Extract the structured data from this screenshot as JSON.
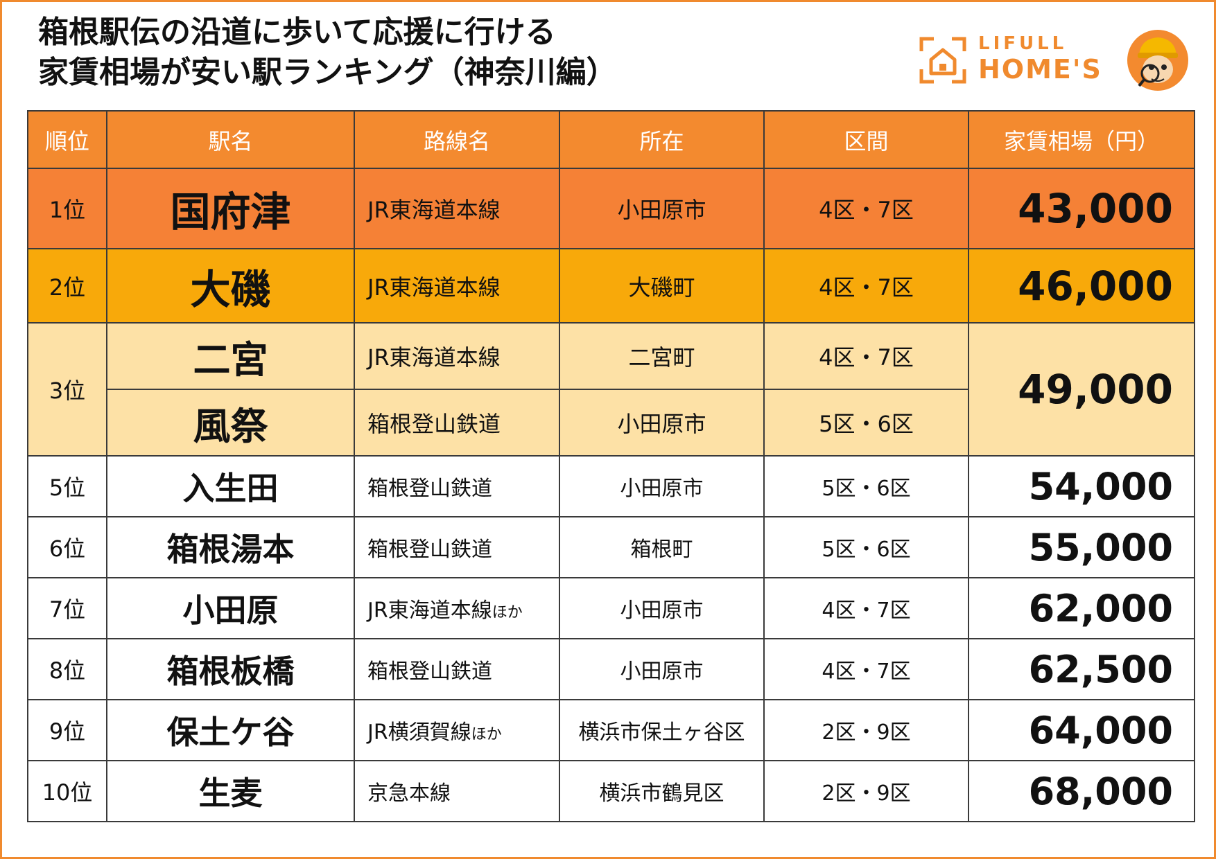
{
  "title": {
    "line1": "箱根駅伝の沿道に歩いて応援に行ける",
    "line2": "家賃相場が安い駅ランキング（神奈川編）"
  },
  "logo": {
    "brand_top": "LIFULL",
    "brand_bottom": "HOME'S",
    "house_icon": "house-icon",
    "mascot_icon": "mascot-detective-icon"
  },
  "colors": {
    "accent": "#f08a2e",
    "header": "#f38a2f",
    "rank1": "#f58136",
    "rank2": "#f8a90a",
    "rank3": "#fde1a6"
  },
  "table": {
    "headers": [
      "順位",
      "駅名",
      "路線名",
      "所在",
      "区間",
      "家賃相場（円）"
    ],
    "rows": [
      {
        "rank": "1位",
        "station": "国府津",
        "line": "JR東海道本線",
        "line_suffix": "",
        "location": "小田原市",
        "section": "4区・7区",
        "rent": "43,000"
      },
      {
        "rank": "2位",
        "station": "大磯",
        "line": "JR東海道本線",
        "line_suffix": "",
        "location": "大磯町",
        "section": "4区・7区",
        "rent": "46,000"
      },
      {
        "rank": "3位",
        "station": "二宮",
        "line": "JR東海道本線",
        "line_suffix": "",
        "location": "二宮町",
        "section": "4区・7区",
        "rent": "49,000"
      },
      {
        "rank": "3位",
        "station": "風祭",
        "line": "箱根登山鉄道",
        "line_suffix": "",
        "location": "小田原市",
        "section": "5区・6区",
        "rent": "49,000"
      },
      {
        "rank": "5位",
        "station": "入生田",
        "line": "箱根登山鉄道",
        "line_suffix": "",
        "location": "小田原市",
        "section": "5区・6区",
        "rent": "54,000"
      },
      {
        "rank": "6位",
        "station": "箱根湯本",
        "line": "箱根登山鉄道",
        "line_suffix": "",
        "location": "箱根町",
        "section": "5区・6区",
        "rent": "55,000"
      },
      {
        "rank": "7位",
        "station": "小田原",
        "line": "JR東海道本線",
        "line_suffix": "ほか",
        "location": "小田原市",
        "section": "4区・7区",
        "rent": "62,000"
      },
      {
        "rank": "8位",
        "station": "箱根板橋",
        "line": "箱根登山鉄道",
        "line_suffix": "",
        "location": "小田原市",
        "section": "4区・7区",
        "rent": "62,500"
      },
      {
        "rank": "9位",
        "station": "保土ケ谷",
        "line": "JR横須賀線",
        "line_suffix": "ほか",
        "location": "横浜市保土ヶ谷区",
        "section": "2区・9区",
        "rent": "64,000"
      },
      {
        "rank": "10位",
        "station": "生麦",
        "line": "京急本線",
        "line_suffix": "",
        "location": "横浜市鶴見区",
        "section": "2区・9区",
        "rent": "68,000"
      }
    ]
  }
}
